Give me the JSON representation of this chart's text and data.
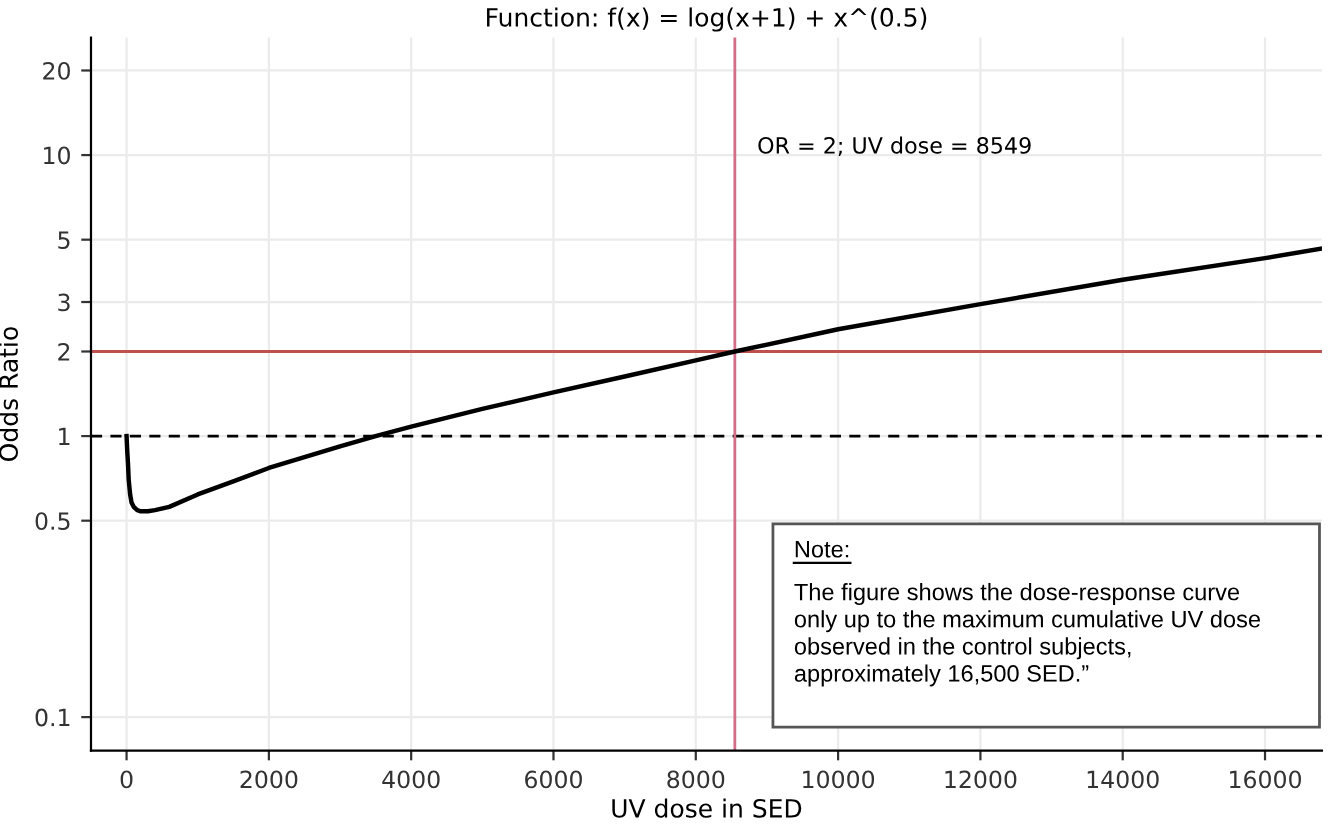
{
  "chart_data": {
    "type": "line",
    "title": "Function: f(x) = log(x+1) + x^(0.5)",
    "xlabel": "UV dose in SED",
    "ylabel": "Odds Ratio",
    "series": [
      {
        "color": "#000000",
        "x": [
          0,
          10,
          20,
          30,
          50,
          70,
          100,
          150,
          200,
          300,
          400,
          600,
          1000,
          1500,
          2000,
          3000,
          3500,
          4000,
          5000,
          6000,
          7000,
          8000,
          8549,
          10000,
          12000,
          14000,
          16000,
          16800
        ],
        "values": [
          1.0,
          0.88,
          0.8,
          0.7,
          0.62,
          0.58,
          0.56,
          0.545,
          0.54,
          0.54,
          0.545,
          0.56,
          0.62,
          0.69,
          0.77,
          0.92,
          1.0,
          1.08,
          1.25,
          1.43,
          1.63,
          1.86,
          2.0,
          2.4,
          2.95,
          3.6,
          4.3,
          4.65
        ]
      }
    ],
    "log": "y",
    "xlim": [
      -500,
      16800
    ],
    "ylim": [
      0.076,
      26.2
    ],
    "xticks": [
      0,
      2000,
      4000,
      6000,
      8000,
      10000,
      12000,
      14000,
      16000
    ],
    "yticks": [
      0.1,
      0.5,
      1,
      2,
      3,
      5,
      10,
      20
    ],
    "grid": true,
    "marker": "none",
    "line_style": "solid",
    "ref_lines": [
      {
        "axis": "y",
        "value": 2,
        "color": "#c0504d",
        "line_style": "solid"
      },
      {
        "axis": "y",
        "value": 1,
        "color": "#000000",
        "line_style": "dashed"
      },
      {
        "axis": "x",
        "value": 8549,
        "color": "#d36e8a",
        "line_style": "solid",
        "label": "OR = 2; UV dose = 8549"
      }
    ],
    "annotations": [
      "Note:",
      "The figure shows the dose-response curve\nonly up to the maximum cumulative UV dose\nobserved in the control subjects,\napproximately 16,500 SED.”"
    ]
  }
}
